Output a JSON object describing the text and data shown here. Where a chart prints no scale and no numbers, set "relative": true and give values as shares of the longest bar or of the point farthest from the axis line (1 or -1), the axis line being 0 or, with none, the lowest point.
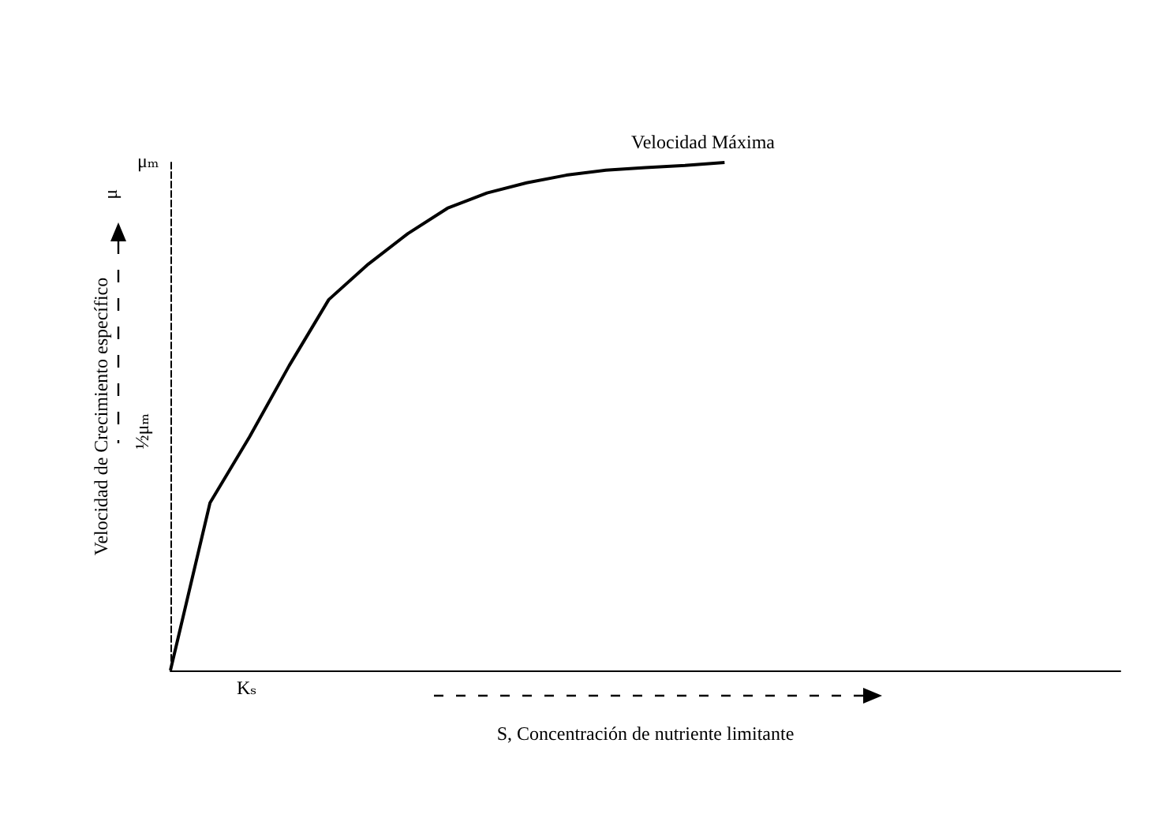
{
  "chart_data": {
    "type": "line",
    "relative": true,
    "xlabel": "S, Concentración de nutriente limitante",
    "ylabel": "Velocidad de Crecimiento específico",
    "categories": [
      null,
      null,
      null,
      null,
      null,
      null,
      null,
      null,
      null,
      null,
      null,
      null,
      null,
      null,
      null,
      null,
      null,
      null,
      null,
      null,
      null,
      null,
      null,
      null,
      null
    ],
    "series": [
      {
        "color": "#000000",
        "values": [
          0,
          0.33,
          0.46,
          0.6,
          0.73,
          0.8,
          0.86,
          0.91,
          0.94,
          0.96,
          0.975,
          0.985,
          0.99,
          0.994,
          1,
          null,
          null,
          null,
          null,
          null,
          null,
          null,
          null,
          null,
          null
        ]
      }
    ],
    "annotations": [
      "Velocidad Máxima",
      "μₘ",
      "½μₘ",
      "Kₛ",
      "μ"
    ],
    "marker": "none",
    "line_style": "solid"
  }
}
